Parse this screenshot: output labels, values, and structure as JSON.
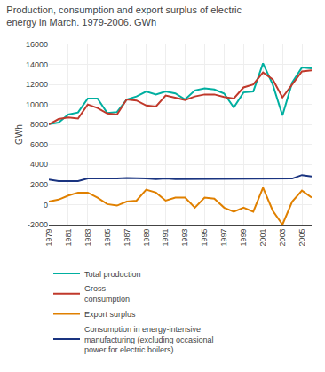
{
  "chart_data": {
    "type": "line",
    "title": "Production, consumption and export surplus of electric\nenergy in March. 1979-2006. GWh",
    "y_label": "GWh",
    "x": [
      1979,
      1980,
      1981,
      1982,
      1983,
      1984,
      1985,
      1986,
      1987,
      1988,
      1989,
      1990,
      1991,
      1992,
      1993,
      1994,
      1995,
      1996,
      1997,
      1998,
      1999,
      2000,
      2001,
      2002,
      2003,
      2004,
      2005,
      2006
    ],
    "series": [
      {
        "name": "Total production",
        "color": "#00afa0",
        "values": [
          8050,
          8200,
          9000,
          9200,
          10600,
          10600,
          9150,
          9250,
          10500,
          10800,
          11300,
          11000,
          11300,
          11100,
          10500,
          11400,
          11600,
          11500,
          11100,
          9700,
          11200,
          11300,
          14100,
          12000,
          8900,
          12200,
          13700,
          13600
        ]
      },
      {
        "name": "Gross\nconsumption",
        "color": "#c0392b",
        "values": [
          8000,
          8550,
          8700,
          8600,
          10000,
          9650,
          9100,
          9000,
          10500,
          10400,
          9900,
          9800,
          10900,
          10700,
          10450,
          10800,
          11000,
          11000,
          10750,
          10600,
          11700,
          12000,
          13200,
          12500,
          10700,
          12000,
          13300,
          13400
        ]
      },
      {
        "name": "Export surplus",
        "color": "#e08000",
        "values": [
          300,
          500,
          900,
          1200,
          1200,
          700,
          50,
          -100,
          300,
          400,
          1500,
          1200,
          400,
          700,
          700,
          -300,
          700,
          600,
          -300,
          -700,
          -300,
          -700,
          1700,
          -600,
          -2000,
          300,
          1400,
          700
        ]
      },
      {
        "name": "Consumption in energy-intensive\nmanufacturing (excluding occasional\npower for electric boilers)",
        "color": "#1a3480",
        "values": [
          2500,
          2350,
          2350,
          2350,
          2600,
          2600,
          2550,
          2600,
          2650,
          2650,
          2600,
          2550,
          2600,
          2550,
          2550,
          2550,
          2550,
          2550,
          2550,
          2550,
          2550,
          2550,
          2600,
          2600,
          2550,
          2600,
          2950,
          2800
        ]
      }
    ],
    "xlim": [
      1979,
      2006
    ],
    "xticks": [
      1979,
      1981,
      1983,
      1985,
      1987,
      1989,
      1991,
      1993,
      1995,
      1997,
      1999,
      2001,
      2003,
      2005
    ],
    "ylim": [
      -2000,
      16000
    ],
    "yticks": [
      -2000,
      0,
      2000,
      4000,
      6000,
      8000,
      10000,
      12000,
      14000,
      16000
    ],
    "grid": true,
    "legend": "bottom"
  }
}
